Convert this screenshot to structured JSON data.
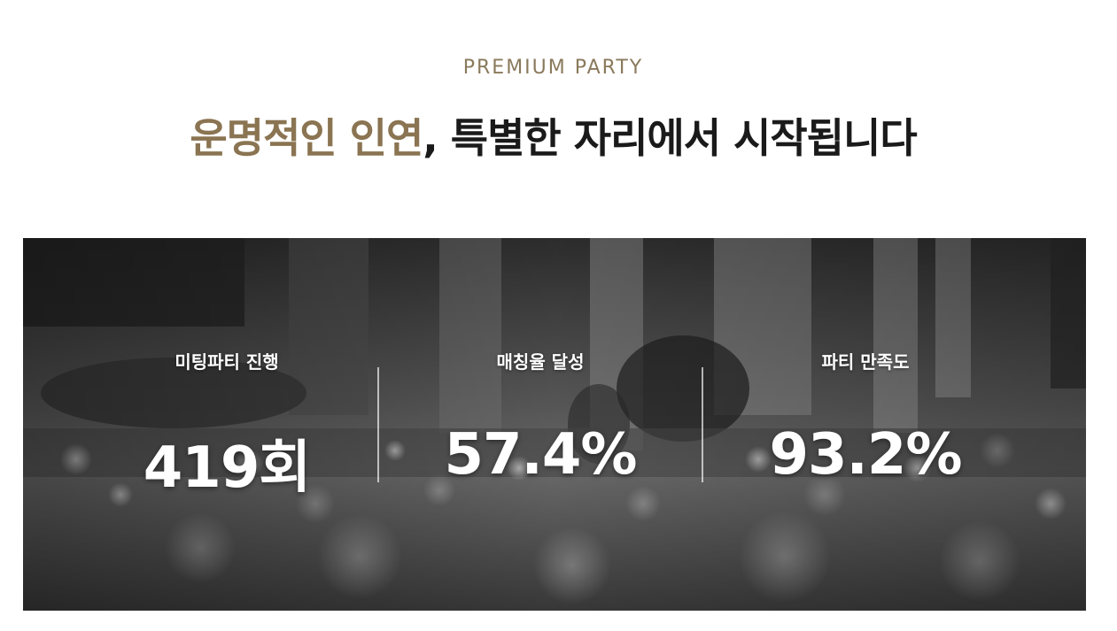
{
  "section": {
    "eyebrow": "PREMIUM PARTY",
    "headline_accent": "운명적인 인연",
    "headline_rest": ", 특별한 자리에서 시작됩니다"
  },
  "stats": [
    {
      "label": "미팅파티 진행",
      "value": "419회"
    },
    {
      "label": "매칭율 달성",
      "value": "57.4%"
    },
    {
      "label": "파티 만족도",
      "value": "93.2%"
    }
  ],
  "colors": {
    "accent": "#8a7452",
    "eyebrow": "#8a7a5c",
    "headline": "#1a1a1a",
    "banner_base": "#3d3d3d"
  },
  "banner_image": "grayscale-party-dance-feet-photo"
}
